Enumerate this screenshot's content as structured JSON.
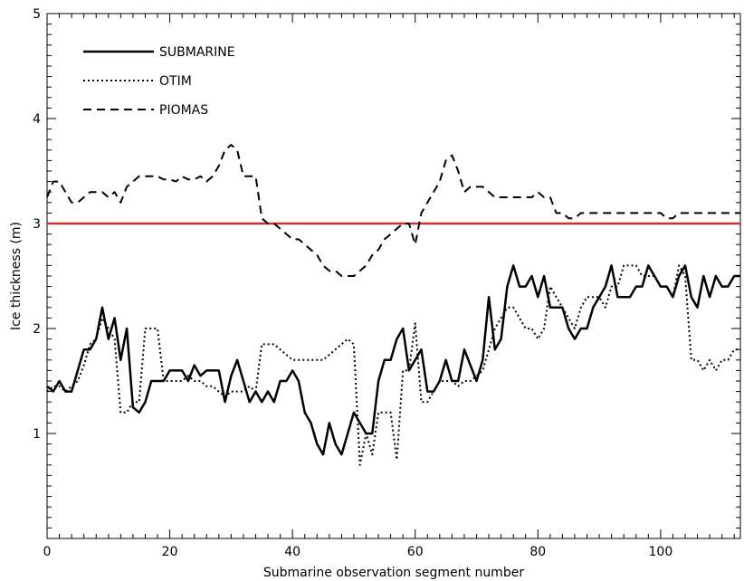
{
  "chart_data": {
    "type": "line",
    "xlabel": "Submarine observation segment number",
    "ylabel": "Ice thickness (m)",
    "xlim": [
      0,
      113
    ],
    "ylim": [
      0,
      5
    ],
    "xticks": [
      0,
      20,
      40,
      60,
      80,
      100
    ],
    "yticks": [
      1,
      2,
      3,
      4,
      5
    ],
    "legend_position": "top-left",
    "reference_line": {
      "y": 3.0,
      "color": "#c83232"
    },
    "series": [
      {
        "name": "SUBMARINE",
        "style": "solid",
        "x": [
          0,
          1,
          2,
          3,
          4,
          5,
          6,
          7,
          8,
          9,
          10,
          11,
          12,
          13,
          14,
          15,
          16,
          17,
          18,
          19,
          20,
          21,
          22,
          23,
          24,
          25,
          26,
          27,
          28,
          29,
          30,
          31,
          32,
          33,
          34,
          35,
          36,
          37,
          38,
          39,
          40,
          41,
          42,
          43,
          44,
          45,
          46,
          47,
          48,
          49,
          50,
          51,
          52,
          53,
          54,
          55,
          56,
          57,
          58,
          59,
          60,
          61,
          62,
          63,
          64,
          65,
          66,
          67,
          68,
          69,
          70,
          71,
          72,
          73,
          74,
          75,
          76,
          77,
          78,
          79,
          80,
          81,
          82,
          83,
          84,
          85,
          86,
          87,
          88,
          89,
          90,
          91,
          92,
          93,
          94,
          95,
          96,
          97,
          98,
          99,
          100,
          101,
          102,
          103,
          104,
          105,
          106,
          107,
          108,
          109,
          110,
          111,
          112,
          113
        ],
        "values": [
          1.45,
          1.4,
          1.5,
          1.4,
          1.4,
          1.6,
          1.8,
          1.8,
          1.9,
          2.2,
          1.9,
          2.1,
          1.7,
          2.0,
          1.25,
          1.2,
          1.3,
          1.5,
          1.5,
          1.5,
          1.6,
          1.6,
          1.6,
          1.5,
          1.65,
          1.55,
          1.6,
          1.6,
          1.6,
          1.3,
          1.55,
          1.7,
          1.5,
          1.3,
          1.4,
          1.3,
          1.4,
          1.3,
          1.5,
          1.5,
          1.6,
          1.5,
          1.2,
          1.1,
          0.9,
          0.8,
          1.1,
          0.9,
          0.8,
          1.0,
          1.2,
          1.1,
          1.0,
          1.0,
          1.5,
          1.7,
          1.7,
          1.9,
          2.0,
          1.6,
          1.7,
          1.8,
          1.4,
          1.4,
          1.5,
          1.7,
          1.5,
          1.5,
          1.8,
          1.65,
          1.5,
          1.7,
          2.3,
          1.8,
          1.9,
          2.4,
          2.6,
          2.4,
          2.4,
          2.5,
          2.3,
          2.5,
          2.2,
          2.2,
          2.2,
          2.0,
          1.9,
          2.0,
          2.0,
          2.2,
          2.3,
          2.4,
          2.6,
          2.3,
          2.3,
          2.3,
          2.4,
          2.4,
          2.6,
          2.5,
          2.4,
          2.4,
          2.3,
          2.5,
          2.6,
          2.3,
          2.2,
          2.5,
          2.3,
          2.5,
          2.4,
          2.4,
          2.5,
          2.5
        ]
      },
      {
        "name": "OTIM",
        "style": "dotted",
        "x": [
          0,
          1,
          2,
          3,
          4,
          5,
          6,
          7,
          8,
          9,
          10,
          11,
          12,
          13,
          14,
          15,
          16,
          17,
          18,
          19,
          20,
          21,
          22,
          23,
          24,
          25,
          26,
          27,
          28,
          29,
          30,
          31,
          32,
          33,
          34,
          35,
          36,
          37,
          38,
          39,
          40,
          41,
          42,
          43,
          44,
          45,
          46,
          47,
          48,
          49,
          50,
          51,
          52,
          53,
          54,
          55,
          56,
          57,
          58,
          59,
          60,
          61,
          62,
          63,
          64,
          65,
          66,
          67,
          68,
          69,
          70,
          71,
          72,
          73,
          74,
          75,
          76,
          77,
          78,
          79,
          80,
          81,
          82,
          83,
          84,
          85,
          86,
          87,
          88,
          89,
          90,
          91,
          92,
          93,
          94,
          95,
          96,
          97,
          98,
          99,
          100,
          101,
          102,
          103,
          104,
          105,
          106,
          107,
          108,
          109,
          110,
          111,
          112,
          113
        ],
        "values": [
          1.4,
          1.45,
          1.45,
          1.4,
          1.45,
          1.5,
          1.65,
          1.85,
          1.9,
          2.1,
          2.0,
          1.9,
          1.2,
          1.2,
          1.3,
          1.3,
          2.0,
          2.0,
          2.0,
          1.5,
          1.5,
          1.5,
          1.5,
          1.55,
          1.5,
          1.5,
          1.45,
          1.45,
          1.4,
          1.35,
          1.4,
          1.4,
          1.4,
          1.45,
          1.4,
          1.85,
          1.85,
          1.85,
          1.8,
          1.75,
          1.7,
          1.7,
          1.7,
          1.7,
          1.7,
          1.7,
          1.75,
          1.8,
          1.85,
          1.9,
          1.85,
          0.7,
          1.0,
          0.8,
          1.2,
          1.2,
          1.2,
          0.75,
          1.6,
          1.6,
          2.05,
          1.3,
          1.3,
          1.4,
          1.5,
          1.5,
          1.5,
          1.45,
          1.5,
          1.5,
          1.55,
          1.6,
          1.8,
          2.0,
          2.1,
          2.2,
          2.2,
          2.1,
          2.0,
          2.0,
          1.9,
          2.0,
          2.4,
          2.3,
          2.2,
          2.1,
          2.0,
          2.2,
          2.3,
          2.3,
          2.3,
          2.2,
          2.4,
          2.4,
          2.6,
          2.6,
          2.6,
          2.5,
          2.5,
          2.5,
          2.4,
          2.4,
          2.3,
          2.6,
          2.5,
          1.7,
          1.7,
          1.6,
          1.7,
          1.6,
          1.7,
          1.7,
          1.8,
          1.8
        ]
      },
      {
        "name": "PIOMAS",
        "style": "dashed",
        "x": [
          0,
          1,
          2,
          3,
          4,
          5,
          6,
          7,
          8,
          9,
          10,
          11,
          12,
          13,
          14,
          15,
          16,
          17,
          18,
          19,
          20,
          21,
          22,
          23,
          24,
          25,
          26,
          27,
          28,
          29,
          30,
          31,
          32,
          33,
          34,
          35,
          36,
          37,
          38,
          39,
          40,
          41,
          42,
          43,
          44,
          45,
          46,
          47,
          48,
          49,
          50,
          51,
          52,
          53,
          54,
          55,
          56,
          57,
          58,
          59,
          60,
          61,
          62,
          63,
          64,
          65,
          66,
          67,
          68,
          69,
          70,
          71,
          72,
          73,
          74,
          75,
          76,
          77,
          78,
          79,
          80,
          81,
          82,
          83,
          84,
          85,
          86,
          87,
          88,
          89,
          90,
          91,
          92,
          93,
          94,
          95,
          96,
          97,
          98,
          99,
          100,
          101,
          102,
          103,
          104,
          105,
          106,
          107,
          108,
          109,
          110,
          111,
          112,
          113
        ],
        "values": [
          3.25,
          3.4,
          3.4,
          3.3,
          3.2,
          3.2,
          3.25,
          3.3,
          3.3,
          3.3,
          3.25,
          3.3,
          3.2,
          3.35,
          3.4,
          3.45,
          3.45,
          3.45,
          3.45,
          3.42,
          3.42,
          3.4,
          3.45,
          3.42,
          3.42,
          3.45,
          3.4,
          3.45,
          3.55,
          3.7,
          3.75,
          3.7,
          3.45,
          3.45,
          3.45,
          3.05,
          3.0,
          3.0,
          2.95,
          2.9,
          2.85,
          2.85,
          2.8,
          2.75,
          2.7,
          2.6,
          2.55,
          2.55,
          2.5,
          2.5,
          2.5,
          2.55,
          2.6,
          2.7,
          2.75,
          2.85,
          2.9,
          2.95,
          3.0,
          3.0,
          2.8,
          3.1,
          3.2,
          3.3,
          3.4,
          3.6,
          3.65,
          3.5,
          3.3,
          3.35,
          3.35,
          3.35,
          3.3,
          3.25,
          3.25,
          3.25,
          3.25,
          3.25,
          3.25,
          3.25,
          3.3,
          3.25,
          3.25,
          3.1,
          3.1,
          3.05,
          3.05,
          3.1,
          3.1,
          3.1,
          3.1,
          3.1,
          3.1,
          3.1,
          3.1,
          3.1,
          3.1,
          3.1,
          3.1,
          3.1,
          3.1,
          3.05,
          3.05,
          3.1,
          3.1,
          3.1,
          3.1,
          3.1,
          3.1,
          3.1,
          3.1,
          3.1,
          3.1,
          3.1
        ]
      }
    ]
  }
}
